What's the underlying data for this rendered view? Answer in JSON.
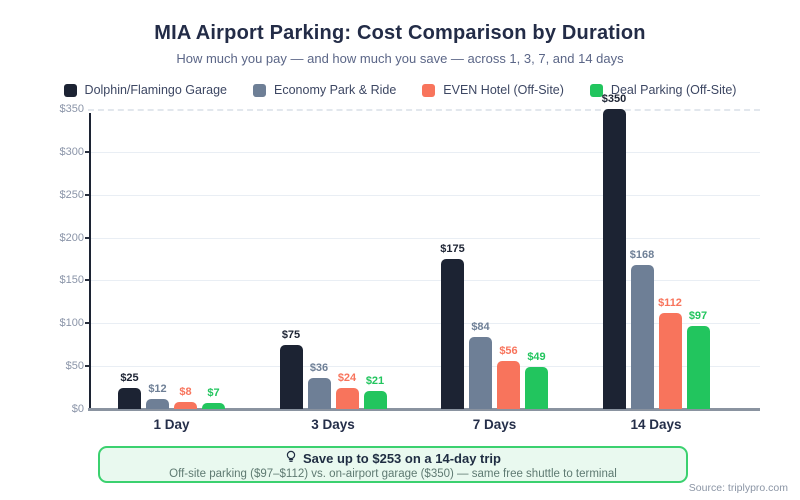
{
  "title": "MIA Airport Parking: Cost Comparison by Duration",
  "subtitle": "How much you pay — and how much you save — across 1, 3, 7, and 14 days",
  "source": "Source: triplypro.com",
  "callout": {
    "title": "Save up to $253 on a 14-day trip",
    "subtitle": "Off-site parking ($97–$112) vs. on-airport garage ($350) — same free shuttle to terminal",
    "border_color": "#3bd16f",
    "bg_color": "#e9f9ef",
    "icon": "lightbulb-icon"
  },
  "chart_data": {
    "type": "bar",
    "categories": [
      "1 Day",
      "3 Days",
      "7 Days",
      "14 Days"
    ],
    "series": [
      {
        "name": "Dolphin/Flamingo Garage",
        "color": "#1c2333",
        "values": [
          25,
          75,
          175,
          350
        ]
      },
      {
        "name": "Economy Park & Ride",
        "color": "#6e7f96",
        "values": [
          12,
          36,
          84,
          168
        ]
      },
      {
        "name": "EVEN Hotel (Off-Site)",
        "color": "#f8745c",
        "values": [
          8,
          24,
          56,
          112
        ]
      },
      {
        "name": "Deal Parking (Off-Site)",
        "color": "#22c55e",
        "values": [
          7,
          21,
          49,
          97
        ]
      }
    ],
    "value_prefix": "$",
    "xlabel": "",
    "ylabel": "",
    "ylim": [
      0,
      350
    ],
    "ytick_step": 50,
    "ytick_labels": [
      "$0",
      "$50",
      "$100",
      "$150",
      "$200",
      "$250",
      "$300",
      "$350"
    ],
    "grid": true,
    "top_gridline_style": "dashed",
    "legend_position": "top"
  }
}
